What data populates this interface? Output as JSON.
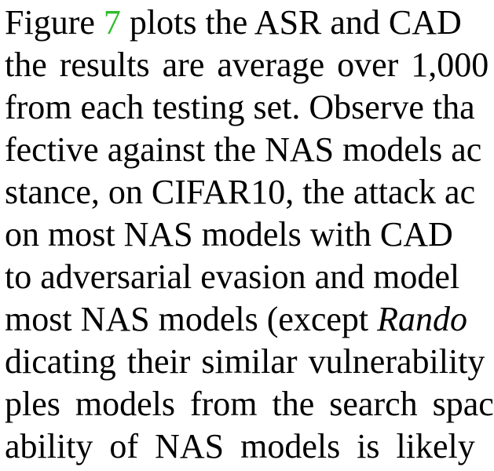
{
  "paragraph": {
    "line1": {
      "before": "Figure ",
      "link": "7",
      "after": " plots the ASR and CAD"
    },
    "line2": "the results are average over 1,000",
    "line3": "from each testing set. Observe tha",
    "line4": "fective against the NAS models ac",
    "line5": "stance, on CIFAR10, the attack ac",
    "line6": "on most NAS models with CAD",
    "line7": "to adversarial evasion and model",
    "line8": {
      "before": "most NAS models (except ",
      "italic": "Rando"
    },
    "line9": "dicating their similar vulnerability",
    "line10": "ples models from the search spac",
    "line11": "ability of NAS models is likely"
  },
  "colors": {
    "text": "#000000",
    "link": "#2dbd2d",
    "background": "#ffffff"
  }
}
